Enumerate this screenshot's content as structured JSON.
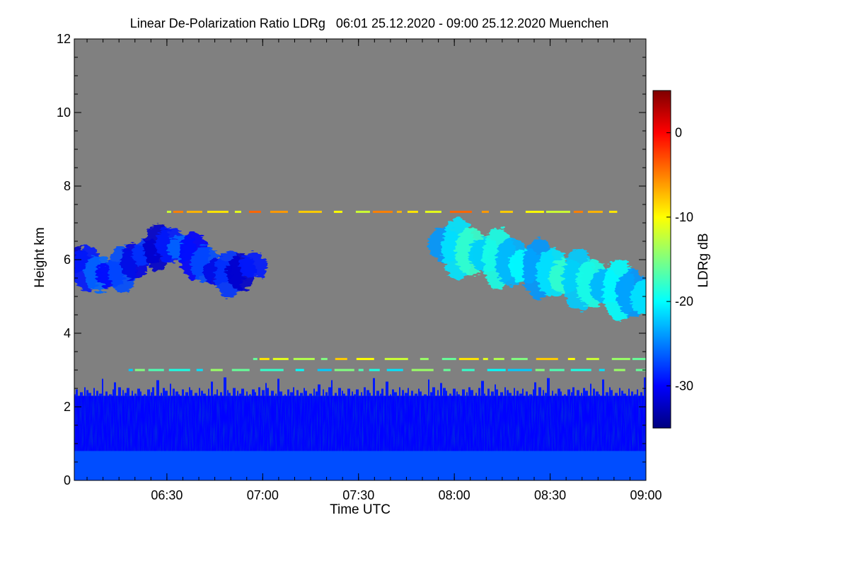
{
  "chart_data": {
    "type": "heatmap",
    "title": "Linear De-Polarization Ratio LDRg   06:01 25.12.2020 - 09:00 25.12.2020 Muenchen",
    "xlabel": "Time UTC",
    "ylabel": "Height km",
    "colorbar_label": "LDRg dB",
    "x_range_hours": [
      6.0167,
      9.0
    ],
    "x_ticks": [
      {
        "value": 6.5,
        "label": "06:30"
      },
      {
        "value": 7.0,
        "label": "07:00"
      },
      {
        "value": 7.5,
        "label": "07:30"
      },
      {
        "value": 8.0,
        "label": "08:00"
      },
      {
        "value": 8.5,
        "label": "08:30"
      },
      {
        "value": 9.0,
        "label": "09:00"
      }
    ],
    "ylim": [
      0,
      12
    ],
    "y_ticks": [
      0,
      2,
      4,
      6,
      8,
      10,
      12
    ],
    "colorbar_range": [
      -35,
      5
    ],
    "colorbar_ticks": [
      0,
      -10,
      -20,
      -30
    ],
    "background_color": "#808080",
    "features": [
      {
        "name": "boundary layer",
        "t_start": 6.0167,
        "t_end": 9.0,
        "h_bottom": 0.0,
        "h_top": 2.3,
        "ldr_db": -30
      },
      {
        "name": "aerosol near surface",
        "t_start": 6.0167,
        "t_end": 9.0,
        "h_bottom": 0.0,
        "h_top": 0.8,
        "ldr_db": -27
      },
      {
        "name": "cirrus (early)",
        "t_start": 6.02,
        "t_end": 6.95,
        "h_bottom": 4.9,
        "h_top": 6.9,
        "ldr_db": -29
      },
      {
        "name": "cirrus (late)",
        "t_start": 7.95,
        "t_end": 9.0,
        "h_bottom": 4.2,
        "h_top": 6.8,
        "ldr_db": -21
      },
      {
        "name": "thin layer 7.3 km",
        "t_start": 6.5,
        "t_end": 8.85,
        "h": 7.3,
        "ldr_db": -8
      },
      {
        "name": "thin layer 3.3 km",
        "t_start": 6.95,
        "t_end": 9.0,
        "h": 3.3,
        "ldr_db": -12
      },
      {
        "name": "thin layer 3.0 km",
        "t_start": 6.3,
        "t_end": 9.0,
        "h": 3.0,
        "ldr_db": -18
      }
    ]
  }
}
